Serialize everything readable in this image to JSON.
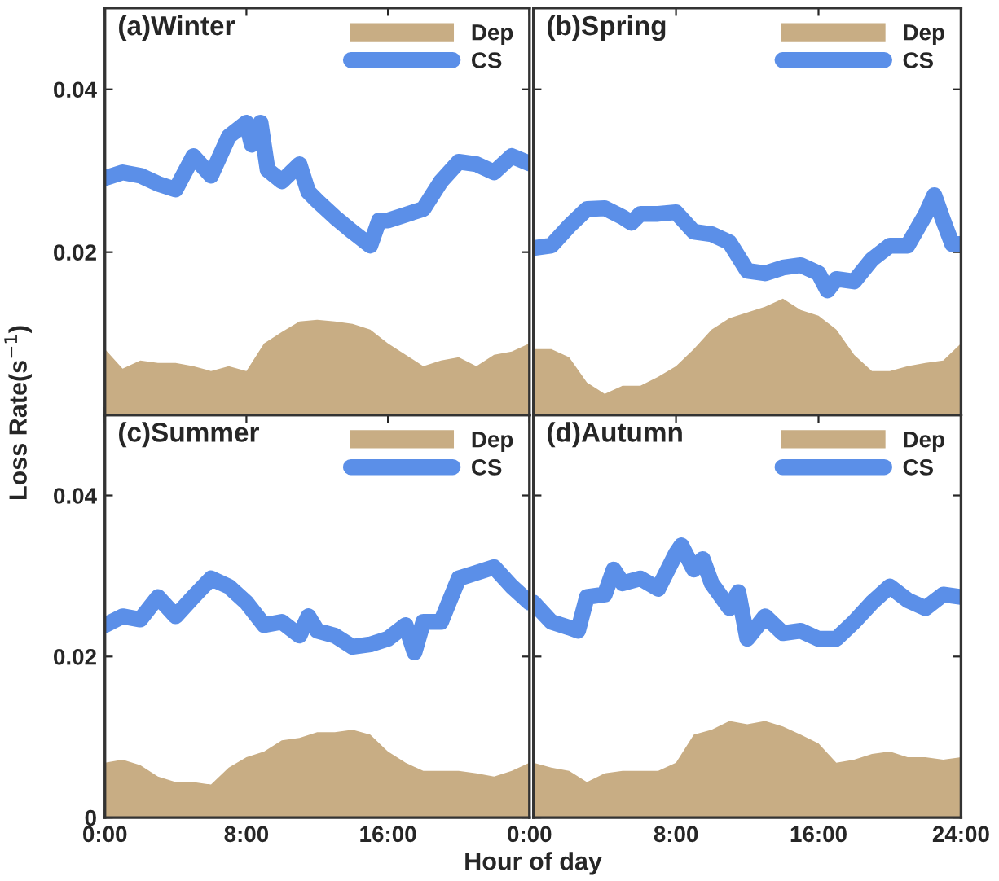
{
  "chart_data": [
    {
      "type": "line",
      "title": "(a)Winter",
      "xlim": [
        0,
        24
      ],
      "ylim": [
        0,
        0.05
      ],
      "xticks": [
        {
          "value": 0,
          "label": null
        },
        {
          "value": 8,
          "label": null
        },
        {
          "value": 16,
          "label": null
        },
        {
          "value": 24,
          "label": null
        }
      ],
      "yticks": [
        0.02,
        0.04
      ],
      "tick_labels": "y",
      "legend": "top right",
      "series": [
        {
          "name": "Dep",
          "type": "area",
          "color": "#c8ad84",
          "x": [
            0,
            1,
            2,
            3,
            4,
            5,
            6,
            7,
            8,
            9,
            10,
            11,
            12,
            13,
            14,
            15,
            16,
            17,
            18,
            19,
            20,
            21,
            22,
            23,
            24
          ],
          "values": [
            0.0081,
            0.0057,
            0.0067,
            0.0064,
            0.0064,
            0.006,
            0.0054,
            0.006,
            0.0054,
            0.0088,
            0.0102,
            0.0115,
            0.0117,
            0.0115,
            0.0112,
            0.0105,
            0.0088,
            0.0074,
            0.006,
            0.0067,
            0.0071,
            0.006,
            0.0074,
            0.0078,
            0.0088
          ]
        },
        {
          "name": "CS",
          "color": "#5b8fe8",
          "x": [
            0,
            1,
            2,
            3,
            4,
            5,
            6,
            7,
            8,
            8.3,
            8.8,
            9.2,
            10,
            11,
            11.5,
            12,
            13,
            14,
            15,
            15.5,
            16,
            17,
            18,
            19,
            20,
            21,
            22,
            23,
            24
          ],
          "values": [
            0.0291,
            0.0298,
            0.0294,
            0.0284,
            0.0277,
            0.0318,
            0.0294,
            0.0342,
            0.0359,
            0.0332,
            0.0359,
            0.0301,
            0.0287,
            0.0308,
            0.0274,
            0.0263,
            0.0243,
            0.0225,
            0.0208,
            0.0239,
            0.0239,
            0.0246,
            0.0253,
            0.0287,
            0.0311,
            0.0308,
            0.0298,
            0.0318,
            0.0309
          ]
        }
      ]
    },
    {
      "type": "line",
      "title": "(b)Spring",
      "xlim": [
        0,
        24
      ],
      "ylim": [
        0,
        0.05
      ],
      "xticks": [
        {
          "value": 0,
          "label": null
        },
        {
          "value": 8,
          "label": null
        },
        {
          "value": 16,
          "label": null
        },
        {
          "value": 24,
          "label": null
        }
      ],
      "yticks": [
        0.02,
        0.04
      ],
      "tick_labels": false,
      "legend": "top right",
      "series": [
        {
          "name": "Dep",
          "type": "area",
          "color": "#c8ad84",
          "x": [
            0,
            1,
            2,
            3,
            4,
            5,
            6,
            7,
            8,
            9,
            10,
            11,
            12,
            13,
            14,
            15,
            16,
            17,
            18,
            19,
            20,
            21,
            22,
            23,
            24
          ],
          "values": [
            0.0081,
            0.0081,
            0.0071,
            0.004,
            0.0026,
            0.0036,
            0.0036,
            0.0047,
            0.006,
            0.0081,
            0.0105,
            0.0119,
            0.0126,
            0.0133,
            0.0143,
            0.0129,
            0.0122,
            0.0105,
            0.0074,
            0.0054,
            0.0054,
            0.006,
            0.0064,
            0.0067,
            0.0088
          ]
        },
        {
          "name": "CS",
          "color": "#5b8fe8",
          "x": [
            0,
            1,
            2,
            3,
            4,
            5,
            5.5,
            6,
            7,
            8,
            9,
            10,
            11,
            12,
            13,
            14,
            15,
            16,
            16.5,
            17,
            18,
            19,
            20,
            21,
            22,
            22.5,
            23,
            23.5,
            24
          ],
          "values": [
            0.0205,
            0.0208,
            0.0232,
            0.0253,
            0.0254,
            0.0243,
            0.0236,
            0.0247,
            0.0247,
            0.0249,
            0.0225,
            0.0222,
            0.0212,
            0.0177,
            0.0174,
            0.0181,
            0.0184,
            0.0174,
            0.0153,
            0.0167,
            0.0164,
            0.0191,
            0.0208,
            0.0208,
            0.0246,
            0.027,
            0.0239,
            0.021,
            0.021
          ]
        }
      ]
    },
    {
      "type": "line",
      "title": "(c)Summer",
      "xlabel": "Hour of day",
      "ylabel": "Loss Rate(s$^{−1}$)",
      "xlim": [
        0,
        24
      ],
      "ylim": [
        0,
        0.05
      ],
      "xticks": [
        {
          "value": 0,
          "label": "0:00"
        },
        {
          "value": 8,
          "label": "8:00"
        },
        {
          "value": 16,
          "label": "16:00"
        },
        {
          "value": 24,
          "label": "0:00"
        }
      ],
      "yticks": [
        0,
        0.02,
        0.04
      ],
      "legend": "top right",
      "series": [
        {
          "name": "Dep",
          "type": "area",
          "color": "#c8ad84",
          "x": [
            0,
            1,
            2,
            3,
            4,
            5,
            6,
            7,
            8,
            9,
            10,
            11,
            12,
            13,
            14,
            15,
            16,
            17,
            18,
            19,
            20,
            21,
            22,
            23,
            24
          ],
          "values": [
            0.0068,
            0.0072,
            0.0065,
            0.0051,
            0.0044,
            0.0044,
            0.0041,
            0.0062,
            0.0075,
            0.0082,
            0.0096,
            0.0099,
            0.0106,
            0.0106,
            0.0109,
            0.0103,
            0.0082,
            0.0068,
            0.0058,
            0.0058,
            0.0058,
            0.0055,
            0.0051,
            0.0058,
            0.0068
          ]
        },
        {
          "name": "CS",
          "color": "#5b8fe8",
          "x": [
            0,
            1,
            2,
            3,
            4,
            5,
            6,
            7,
            8,
            9,
            10,
            11,
            11.5,
            12,
            13,
            14,
            15,
            16,
            17,
            17.5,
            18,
            19,
            20,
            21,
            22,
            23,
            24
          ],
          "values": [
            0.0239,
            0.025,
            0.0246,
            0.0274,
            0.025,
            0.0274,
            0.0297,
            0.0287,
            0.0267,
            0.0239,
            0.0243,
            0.0226,
            0.025,
            0.0232,
            0.0226,
            0.0212,
            0.0215,
            0.0222,
            0.0239,
            0.0205,
            0.0243,
            0.0243,
            0.0297,
            0.0304,
            0.0311,
            0.0287,
            0.0267
          ]
        }
      ]
    },
    {
      "type": "line",
      "title": "(d)Autumn",
      "xlim": [
        0,
        24
      ],
      "ylim": [
        0,
        0.05
      ],
      "xticks": [
        {
          "value": 0,
          "label": null
        },
        {
          "value": 8,
          "label": "8:00"
        },
        {
          "value": 16,
          "label": "16:00"
        },
        {
          "value": 24,
          "label": "24:00"
        }
      ],
      "yticks": [
        0,
        0.02,
        0.04
      ],
      "tick_labels": "x",
      "legend": "top right",
      "series": [
        {
          "name": "Dep",
          "type": "area",
          "color": "#c8ad84",
          "x": [
            0,
            1,
            2,
            3,
            4,
            5,
            6,
            7,
            8,
            9,
            10,
            11,
            12,
            13,
            14,
            15,
            16,
            17,
            18,
            19,
            20,
            21,
            22,
            23,
            24
          ],
          "values": [
            0.0068,
            0.0062,
            0.0058,
            0.0044,
            0.0055,
            0.0058,
            0.0058,
            0.0058,
            0.0068,
            0.0103,
            0.0109,
            0.012,
            0.0116,
            0.012,
            0.0113,
            0.0103,
            0.0092,
            0.0068,
            0.0072,
            0.0079,
            0.0082,
            0.0075,
            0.0075,
            0.0072,
            0.0075
          ]
        },
        {
          "name": "CS",
          "color": "#5b8fe8",
          "x": [
            0,
            1,
            2,
            2.5,
            3,
            4,
            4.5,
            5,
            6,
            7,
            8,
            8.3,
            9,
            9.5,
            10,
            11,
            11.5,
            12,
            13,
            14,
            15,
            16,
            17,
            18,
            19,
            20,
            21,
            22,
            23,
            24
          ],
          "values": [
            0.0267,
            0.0243,
            0.0236,
            0.0232,
            0.0274,
            0.0277,
            0.0308,
            0.0291,
            0.0297,
            0.0284,
            0.0328,
            0.0338,
            0.0308,
            0.0321,
            0.0291,
            0.026,
            0.028,
            0.0222,
            0.025,
            0.0229,
            0.0232,
            0.0222,
            0.0222,
            0.0243,
            0.0267,
            0.0287,
            0.027,
            0.026,
            0.0277,
            0.0274
          ]
        }
      ]
    }
  ]
}
